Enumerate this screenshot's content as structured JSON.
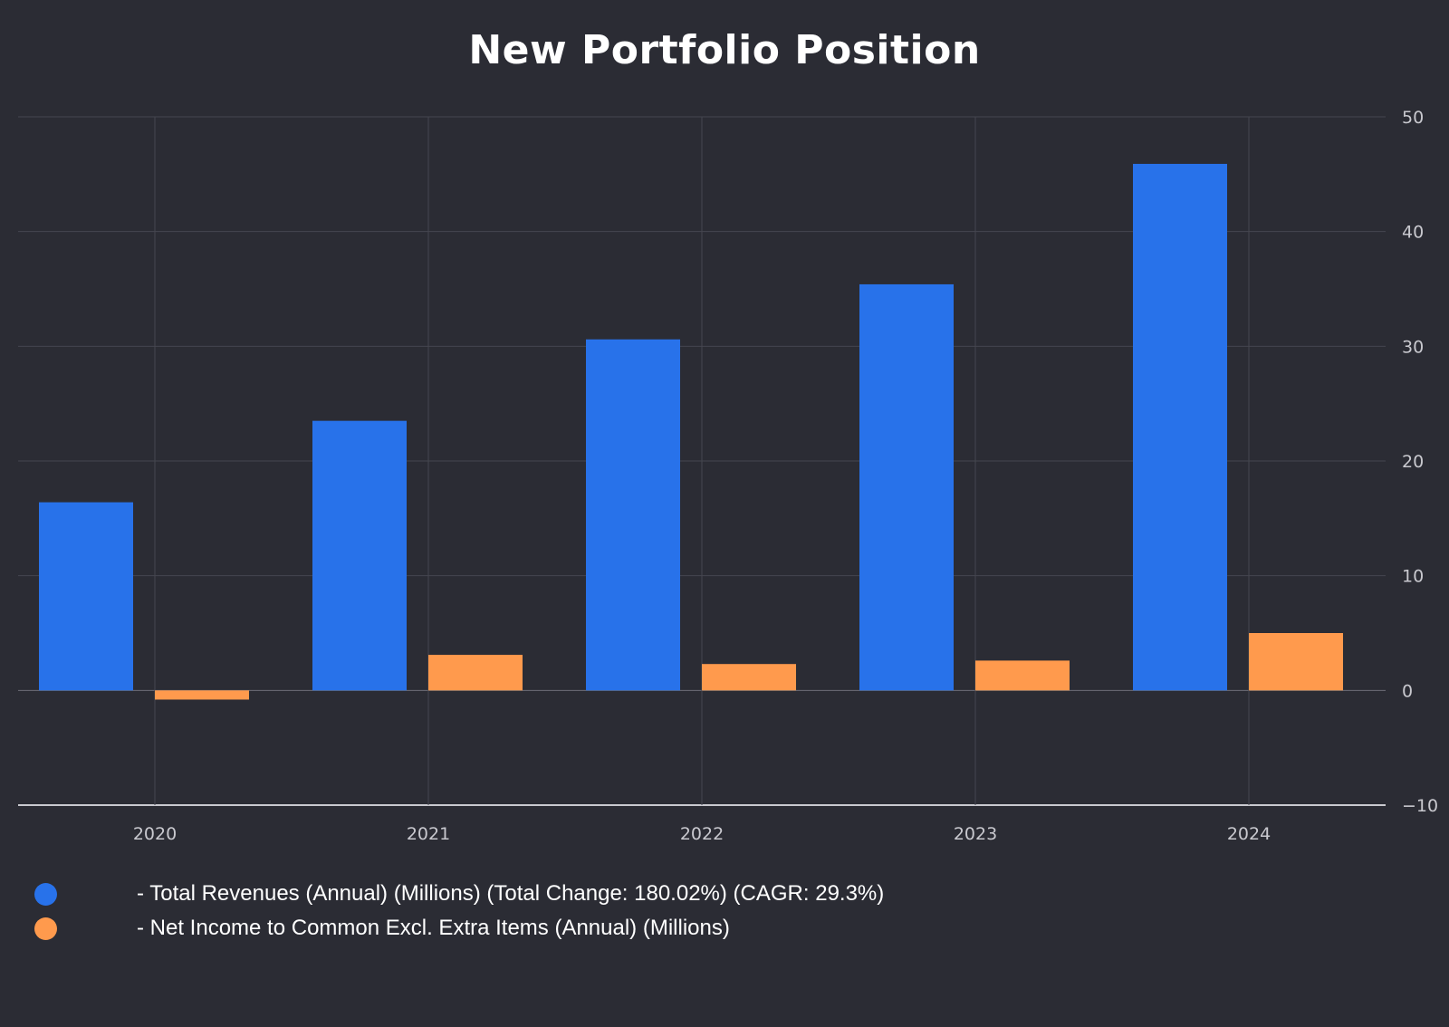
{
  "chart_data": {
    "type": "bar",
    "title": "New Portfolio Position",
    "categories": [
      "2020",
      "2021",
      "2022",
      "2023",
      "2024"
    ],
    "series": [
      {
        "name": "- Total Revenues (Annual) (Millions) (Total Change: 180.02%) (CAGR: 29.3%)",
        "color": "#2872ea",
        "values": [
          16.4,
          23.5,
          30.6,
          35.4,
          45.9
        ]
      },
      {
        "name": "- Net Income to Common Excl. Extra Items (Annual) (Millions)",
        "color": "#ff9a4d",
        "values": [
          -0.8,
          3.1,
          2.3,
          2.6,
          5.0
        ]
      }
    ],
    "ylim": [
      -10,
      50
    ],
    "yticks": [
      "-10",
      "0",
      "10",
      "20",
      "30",
      "40",
      "50"
    ],
    "y_axis_position": "right",
    "grid": true,
    "legend_position": "bottom-left"
  }
}
